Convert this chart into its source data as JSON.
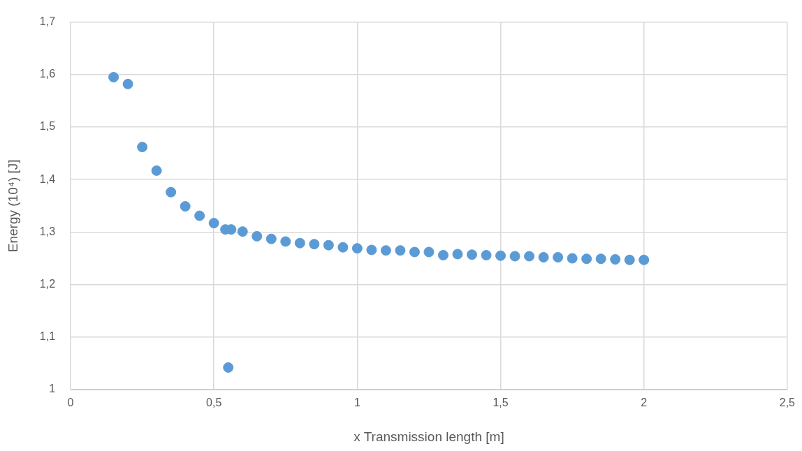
{
  "chart_data": {
    "type": "scatter",
    "xlabel": "x Transmission length [m]",
    "ylabel": "Energy (10⁴) [J]",
    "x": [
      0.15,
      0.2,
      0.25,
      0.3,
      0.35,
      0.4,
      0.45,
      0.5,
      0.54,
      0.55,
      0.56,
      0.6,
      0.65,
      0.7,
      0.75,
      0.8,
      0.85,
      0.9,
      0.95,
      1.0,
      1.05,
      1.1,
      1.15,
      1.2,
      1.25,
      1.3,
      1.35,
      1.4,
      1.45,
      1.5,
      1.55,
      1.6,
      1.65,
      1.7,
      1.75,
      1.8,
      1.85,
      1.9,
      1.95,
      2.0
    ],
    "series": [
      {
        "color": "#5b9bd5",
        "values": [
          1.595,
          1.582,
          1.462,
          1.417,
          1.376,
          1.349,
          1.331,
          1.317,
          1.305,
          1.042,
          1.305,
          1.301,
          1.292,
          1.287,
          1.282,
          1.279,
          1.277,
          1.275,
          1.271,
          1.269,
          1.266,
          1.265,
          1.265,
          1.262,
          1.262,
          1.256,
          1.258,
          1.257,
          1.256,
          1.255,
          1.254,
          1.254,
          1.252,
          1.252,
          1.25,
          1.249,
          1.249,
          1.248,
          1.247,
          1.247
        ]
      }
    ],
    "xlim": [
      0,
      2.5
    ],
    "xticks": [
      0,
      {
        "value": 0.5,
        "label": "0,5"
      },
      1,
      {
        "value": 1.5,
        "label": "1,5"
      },
      2,
      {
        "value": 2.5,
        "label": "2,5"
      }
    ],
    "ylim": [
      1,
      1.7
    ],
    "yticks": [
      1,
      {
        "value": 1.1,
        "label": "1,1"
      },
      {
        "value": 1.2,
        "label": "1,2"
      },
      {
        "value": 1.3,
        "label": "1,3"
      },
      {
        "value": 1.4,
        "label": "1,4"
      },
      {
        "value": 1.5,
        "label": "1,5"
      },
      {
        "value": 1.6,
        "label": "1,6"
      },
      {
        "value": 1.7,
        "label": "1,7"
      }
    ],
    "grid": true,
    "marker": "circle",
    "legend": false
  }
}
